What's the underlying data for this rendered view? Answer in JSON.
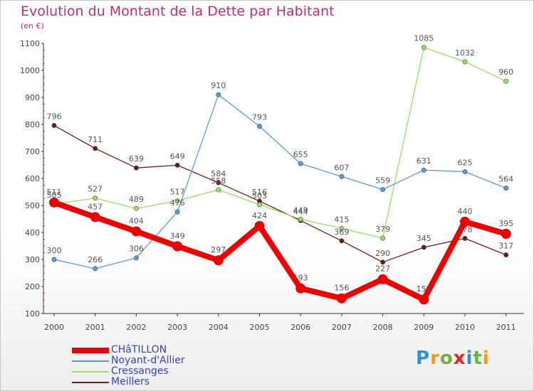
{
  "header": {
    "title": "Evolution du Montant de la Dette par Habitant",
    "subtitle": "(en €)"
  },
  "chart_data": {
    "type": "line",
    "x": [
      "2000",
      "2001",
      "2002",
      "2003",
      "2004",
      "2005",
      "2006",
      "2007",
      "2008",
      "2009",
      "2010",
      "2011"
    ],
    "yticks": [
      "100",
      "200",
      "300",
      "400",
      "500",
      "600",
      "700",
      "800",
      "900",
      "1000",
      "1100"
    ],
    "ylim": [
      100,
      1100
    ],
    "grid": false,
    "legend_position": "bottom-left",
    "series": [
      {
        "name": "Meillers",
        "color": "#6b1d1d",
        "values": [
          796,
          711,
          639,
          649,
          584,
          516,
          444,
          369,
          290,
          345,
          378,
          317
        ]
      },
      {
        "name": "Cressanges",
        "color": "#99dd66",
        "values": [
          505,
          527,
          489,
          517,
          558,
          503,
          449,
          415,
          379,
          1085,
          1032,
          960
        ]
      },
      {
        "name": "Noyant-d'Allier",
        "color": "#5b9bd5",
        "values": [
          300,
          266,
          306,
          476,
          910,
          793,
          655,
          607,
          559,
          631,
          625,
          564
        ]
      },
      {
        "name": "CHâTILLON",
        "color": "#ee0000",
        "values": [
          511,
          457,
          404,
          349,
          297,
          424,
          193,
          156,
          227,
          152,
          440,
          395
        ]
      }
    ]
  },
  "legend": {
    "items": [
      {
        "label": "CHâTILLON",
        "color": "#ee0000"
      },
      {
        "label": "Noyant-d'Allier",
        "color": "#5b9bd5"
      },
      {
        "label": "Cressanges",
        "color": "#99dd66"
      },
      {
        "label": "Meillers",
        "color": "#6b1d1d"
      }
    ]
  },
  "logo": {
    "letters": [
      "P",
      "r",
      "o",
      "x",
      "i",
      "t",
      "i"
    ],
    "colors": [
      "#2f8fd8",
      "#f29a1c",
      "#6cb33f",
      "#e2231a",
      "#2f8fd8",
      "#6cb33f",
      "#f29a1c"
    ]
  }
}
